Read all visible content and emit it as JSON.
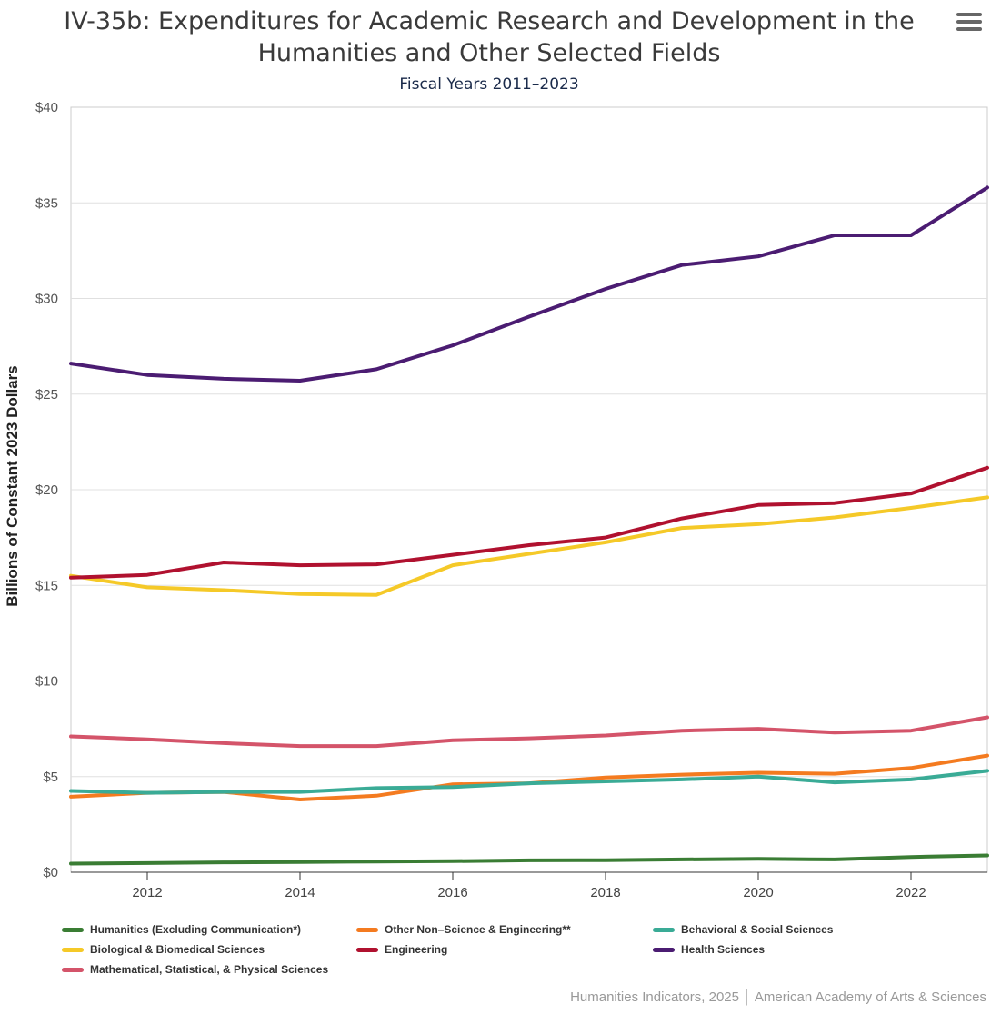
{
  "chart_data": {
    "type": "line",
    "title": "IV-35b: Expenditures for Academic Research and Development in the Humanities and Other Selected Fields",
    "subtitle": "Fiscal Years 2011–2023",
    "ylabel": "Billions of Constant 2023 Dollars",
    "xlabel": "",
    "x": [
      2011,
      2012,
      2013,
      2014,
      2015,
      2016,
      2017,
      2018,
      2019,
      2020,
      2021,
      2022,
      2023
    ],
    "xticks": [
      2012,
      2014,
      2016,
      2018,
      2020,
      2022
    ],
    "xtick_labels": [
      "2012",
      "2014",
      "2016",
      "2018",
      "2020",
      "2022"
    ],
    "xlim": [
      2011,
      2023
    ],
    "ylim": [
      0,
      40
    ],
    "yticks": [
      0,
      5,
      10,
      15,
      20,
      25,
      30,
      35,
      40
    ],
    "ytick_labels": [
      "$0",
      "$5",
      "$10",
      "$15",
      "$20",
      "$25",
      "$30",
      "$35",
      "$40"
    ],
    "grid": true,
    "legend_position": "bottom",
    "series": [
      {
        "name": "Humanities (Excluding Communication*)",
        "color": "#3a7d34",
        "values": [
          0.45,
          0.48,
          0.52,
          0.53,
          0.56,
          0.58,
          0.62,
          0.63,
          0.67,
          0.7,
          0.67,
          0.8,
          0.88
        ]
      },
      {
        "name": "Other Non–Science & Engineering**",
        "color": "#f47b20",
        "values": [
          3.95,
          4.15,
          4.2,
          3.8,
          4.0,
          4.6,
          4.65,
          4.95,
          5.1,
          5.2,
          5.15,
          5.45,
          6.1
        ]
      },
      {
        "name": "Behavioral & Social Sciences",
        "color": "#3aab96",
        "values": [
          4.25,
          4.15,
          4.2,
          4.2,
          4.4,
          4.45,
          4.65,
          4.75,
          4.85,
          5.0,
          4.7,
          4.85,
          5.3
        ]
      },
      {
        "name": "Biological & Biomedical Sciences",
        "color": "#f5c928",
        "values": [
          15.5,
          14.9,
          14.75,
          14.55,
          14.5,
          16.05,
          16.65,
          17.25,
          18.0,
          18.2,
          18.55,
          19.05,
          19.6
        ]
      },
      {
        "name": "Engineering",
        "color": "#b0112f",
        "values": [
          15.4,
          15.55,
          16.2,
          16.05,
          16.1,
          16.6,
          17.1,
          17.5,
          18.5,
          19.2,
          19.3,
          19.8,
          21.15
        ]
      },
      {
        "name": "Health Sciences",
        "color": "#4b1c72",
        "values": [
          26.6,
          26.0,
          25.8,
          25.7,
          26.3,
          27.55,
          29.05,
          30.5,
          31.75,
          32.2,
          33.3,
          33.3,
          35.8
        ]
      },
      {
        "name": "Mathematical, Statistical, & Physical Sciences",
        "color": "#d4546a",
        "values": [
          7.1,
          6.95,
          6.75,
          6.6,
          6.6,
          6.9,
          7.0,
          7.15,
          7.4,
          7.5,
          7.3,
          7.4,
          8.1
        ]
      }
    ]
  },
  "menu": {
    "icon": "hamburger-menu-icon"
  },
  "credits": {
    "text": "Humanities Indicators, 2025 │ American Academy of Arts & Sciences"
  }
}
